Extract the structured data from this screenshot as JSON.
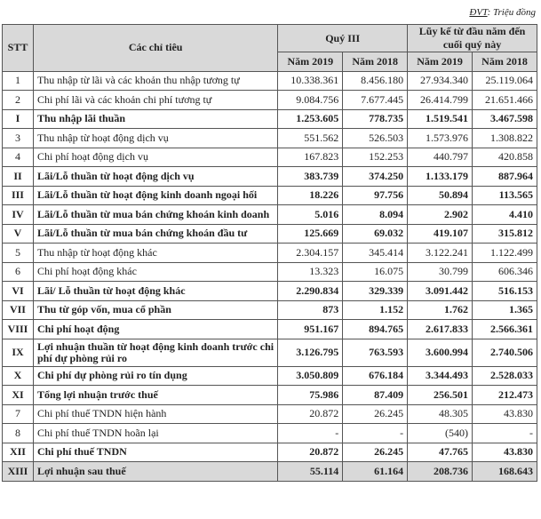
{
  "unit_label": "ĐVT",
  "unit_value": ": Triệu đồng",
  "header": {
    "stt": "STT",
    "indicator": "Các chỉ tiêu",
    "quarter": "Quý III",
    "ytd": "Lũy kế từ đầu năm đến cuối quý này",
    "y2019": "Năm 2019",
    "y2018": "Năm 2018"
  },
  "rows": [
    {
      "stt": "1",
      "label": "Thu nhập từ lãi và các khoản thu nhập tương tự",
      "q2019": "10.338.361",
      "q2018": "8.456.180",
      "ytd2019": "27.934.340",
      "ytd2018": "25.119.064"
    },
    {
      "stt": "2",
      "label": "Chi phí lãi và các khoản chi phí tương tự",
      "q2019": "9.084.756",
      "q2018": "7.677.445",
      "ytd2019": "26.414.799",
      "ytd2018": "21.651.466"
    },
    {
      "stt": "I",
      "label": "Thu nhập lãi thuần",
      "q2019": "1.253.605",
      "q2018": "778.735",
      "ytd2019": "1.519.541",
      "ytd2018": "3.467.598"
    },
    {
      "stt": "3",
      "label": "Thu nhập từ hoạt động dịch vụ",
      "q2019": "551.562",
      "q2018": "526.503",
      "ytd2019": "1.573.976",
      "ytd2018": "1.308.822"
    },
    {
      "stt": "4",
      "label": "Chi phí hoạt động dịch vụ",
      "q2019": "167.823",
      "q2018": "152.253",
      "ytd2019": "440.797",
      "ytd2018": "420.858"
    },
    {
      "stt": "II",
      "label": "Lãi/Lỗ thuần từ hoạt động dịch vụ",
      "q2019": "383.739",
      "q2018": "374.250",
      "ytd2019": "1.133.179",
      "ytd2018": "887.964"
    },
    {
      "stt": "III",
      "label": "Lãi/Lỗ thuần từ hoạt động kinh doanh ngoại hối",
      "q2019": "18.226",
      "q2018": "97.756",
      "ytd2019": "50.894",
      "ytd2018": "113.565"
    },
    {
      "stt": "IV",
      "label": "Lãi/Lỗ thuần từ mua bán chứng khoán kinh doanh",
      "q2019": "5.016",
      "q2018": "8.094",
      "ytd2019": "2.902",
      "ytd2018": "4.410"
    },
    {
      "stt": "V",
      "label": "Lãi/Lỗ thuần từ mua bán chứng khoán đầu tư",
      "q2019": "125.669",
      "q2018": "69.032",
      "ytd2019": "419.107",
      "ytd2018": "315.812"
    },
    {
      "stt": "5",
      "label": "Thu nhập từ hoạt động khác",
      "q2019": "2.304.157",
      "q2018": "345.414",
      "ytd2019": "3.122.241",
      "ytd2018": "1.122.499"
    },
    {
      "stt": "6",
      "label": "Chi phí hoạt động khác",
      "q2019": "13.323",
      "q2018": "16.075",
      "ytd2019": "30.799",
      "ytd2018": "606.346"
    },
    {
      "stt": "VI",
      "label": "Lãi/ Lỗ thuần từ hoạt động khác",
      "q2019": "2.290.834",
      "q2018": "329.339",
      "ytd2019": "3.091.442",
      "ytd2018": "516.153"
    },
    {
      "stt": "VII",
      "label": "Thu từ góp vốn, mua cổ phần",
      "q2019": "873",
      "q2018": "1.152",
      "ytd2019": "1.762",
      "ytd2018": "1.365"
    },
    {
      "stt": "VIII",
      "label": "Chi phí hoạt động",
      "q2019": "951.167",
      "q2018": "894.765",
      "ytd2019": "2.617.833",
      "ytd2018": "2.566.361"
    },
    {
      "stt": "IX",
      "label": "Lợi nhuận thuần từ hoạt động kinh doanh trước chi phí dự phòng rủi ro",
      "q2019": "3.126.795",
      "q2018": "763.593",
      "ytd2019": "3.600.994",
      "ytd2018": "2.740.506"
    },
    {
      "stt": "X",
      "label": "Chi phí dự phòng rủi ro tín dụng",
      "q2019": "3.050.809",
      "q2018": "676.184",
      "ytd2019": "3.344.493",
      "ytd2018": "2.528.033"
    },
    {
      "stt": "XI",
      "label": "Tổng lợi nhuận trước thuế",
      "q2019": "75.986",
      "q2018": "87.409",
      "ytd2019": "256.501",
      "ytd2018": "212.473"
    },
    {
      "stt": "7",
      "label": "Chi phí thuế TNDN hiện hành",
      "q2019": "20.872",
      "q2018": "26.245",
      "ytd2019": "48.305",
      "ytd2018": "43.830"
    },
    {
      "stt": "8",
      "label": "Chi phí thuế TNDN hoãn lại",
      "q2019": "-",
      "q2018": "-",
      "ytd2019": "(540)",
      "ytd2018": "-"
    },
    {
      "stt": "XII",
      "label": "Chi phí thuế TNDN",
      "q2019": "20.872",
      "q2018": "26.245",
      "ytd2019": "47.765",
      "ytd2018": "43.830"
    },
    {
      "stt": "XIII",
      "label": "Lợi nhuận sau thuế",
      "q2019": "55.114",
      "q2018": "61.164",
      "ytd2019": "208.736",
      "ytd2018": "168.643"
    }
  ]
}
